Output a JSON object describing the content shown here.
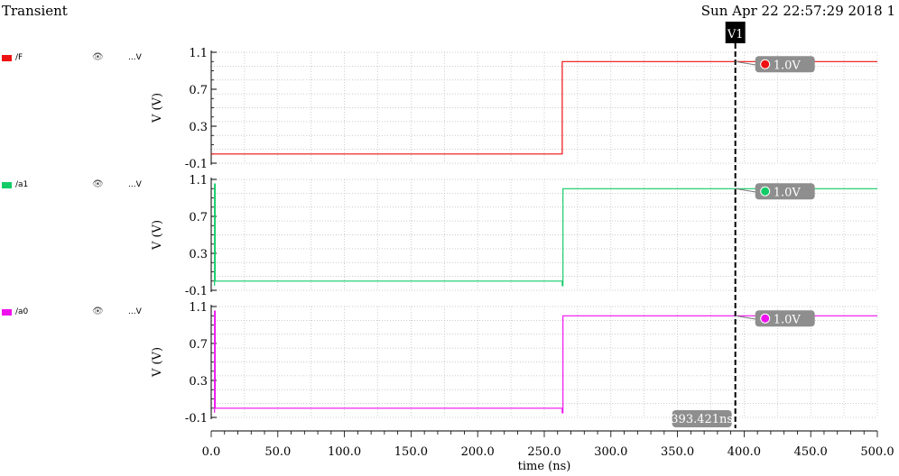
{
  "header": {
    "title": "Transient",
    "timestamp": "Sun Apr 22 22:57:29 2018   1"
  },
  "legend": [
    {
      "name": "/F",
      "unit": "...V",
      "color": "#ee1111",
      "eye": "eye-icon"
    },
    {
      "name": "/a1",
      "unit": "...V",
      "color": "#11cc66",
      "eye": "eye-icon"
    },
    {
      "name": "/a0",
      "unit": "...V",
      "color": "#ee11ee",
      "eye": "eye-icon"
    }
  ],
  "cursor": {
    "name": "V1",
    "time_label": "393.421ns",
    "time": 393.421
  },
  "chart_data": {
    "type": "line",
    "xlabel": "time (ns)",
    "xlim": [
      0,
      500
    ],
    "x_ticks": [
      "0.0",
      "50.0",
      "100.0",
      "150.0",
      "200.0",
      "250.0",
      "300.0",
      "350.0",
      "400.0",
      "450.0",
      "500.0"
    ],
    "grid": true,
    "panels": [
      {
        "name": "/F",
        "color": "#ee1111",
        "ylabel": "V (V)",
        "ylim": [
          -0.1,
          1.1
        ],
        "y_ticks": [
          "1.1",
          "0.7",
          "0.3",
          "-0.1"
        ],
        "x": [
          0,
          263.5,
          263.5,
          500
        ],
        "y": [
          0,
          0,
          1.0,
          1.0
        ],
        "marker_label": "1.0V"
      },
      {
        "name": "/a1",
        "color": "#11cc66",
        "ylabel": "V (V)",
        "ylim": [
          -0.1,
          1.1
        ],
        "y_ticks": [
          "1.1",
          "0.7",
          "0.3",
          "-0.1"
        ],
        "x": [
          2.5,
          2.5,
          3.0,
          3.0,
          263.5,
          263.5,
          264.0,
          264.0,
          500
        ],
        "y": [
          -0.05,
          1.05,
          1.05,
          0,
          0,
          -0.05,
          -0.05,
          1.0,
          1.0
        ],
        "marker_label": "1.0V"
      },
      {
        "name": "/a0",
        "color": "#ee11ee",
        "ylabel": "V (V)",
        "ylim": [
          -0.1,
          1.1
        ],
        "y_ticks": [
          "1.1",
          "0.7",
          "0.3",
          "-0.1"
        ],
        "x": [
          2.5,
          2.5,
          3.0,
          3.0,
          263.5,
          263.5,
          264.0,
          264.0,
          500
        ],
        "y": [
          -0.05,
          1.05,
          1.05,
          0,
          0,
          -0.05,
          -0.05,
          1.0,
          1.0
        ],
        "marker_label": "1.0V"
      }
    ]
  }
}
